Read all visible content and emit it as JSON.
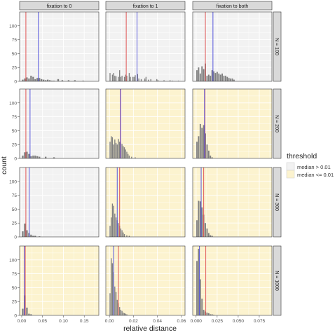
{
  "chart_data": {
    "type": "bar",
    "title": "",
    "xlabel": "relative distance",
    "ylabel": "count",
    "ylim": [
      0,
      125
    ],
    "yticks": [
      0,
      25,
      50,
      75,
      100
    ],
    "grid": true,
    "legend": {
      "title": "threshold",
      "placement": "right",
      "entries": [
        {
          "label": "median > 0.01",
          "color": "#f2f2f2"
        },
        {
          "label": "median <= 0.01",
          "color": "#fcf3cf"
        }
      ]
    },
    "line_colors": {
      "red_line": "#e05555",
      "blue_line": "#5555dd"
    },
    "bar_color": "#808080",
    "columns": [
      {
        "label": "fixation to 0",
        "xlim": [
          -0.005,
          0.185
        ],
        "xticks": [
          "0.00",
          "0.05",
          "0.10",
          "0.15"
        ],
        "xtick_values": [
          0,
          0.05,
          0.1,
          0.15
        ]
      },
      {
        "label": "fixation to 1",
        "xlim": [
          -0.003,
          0.063
        ],
        "xticks": [
          "0.00",
          "0.02",
          "0.04",
          "0.06"
        ],
        "xtick_values": [
          0,
          0.02,
          0.04,
          0.06
        ]
      },
      {
        "label": "fixation to both",
        "xlim": [
          -0.004,
          0.09
        ],
        "xticks": [
          "0.000",
          "0.025",
          "0.050",
          "0.075"
        ],
        "xtick_values": [
          0,
          0.025,
          0.05,
          0.075
        ]
      }
    ],
    "rows": [
      {
        "label": "N = 100"
      },
      {
        "label": "N = 200"
      },
      {
        "label": "N = 300"
      },
      {
        "label": "N = 1000"
      }
    ],
    "panels": [
      [
        {
          "fill": "median > 0.01",
          "red": 0.01,
          "blue": 0.04,
          "bins": [
            [
              0.0025,
              3
            ],
            [
              0.0075,
              5
            ],
            [
              0.0125,
              7
            ],
            [
              0.0175,
              5
            ],
            [
              0.0225,
              10
            ],
            [
              0.0275,
              8
            ],
            [
              0.0325,
              4
            ],
            [
              0.0375,
              6
            ],
            [
              0.0425,
              6
            ],
            [
              0.0475,
              4
            ],
            [
              0.0525,
              3
            ],
            [
              0.0575,
              2
            ],
            [
              0.0625,
              3
            ],
            [
              0.0675,
              2
            ],
            [
              0.0725,
              1
            ],
            [
              0.0775,
              1
            ],
            [
              0.0875,
              4
            ],
            [
              0.0975,
              2
            ],
            [
              0.1125,
              2
            ],
            [
              0.1275,
              2
            ],
            [
              0.1475,
              1
            ]
          ]
        },
        {
          "fill": "median > 0.01",
          "red": 0.01,
          "blue": 0.02,
          "bins": [
            [
              0.0025,
              5
            ],
            [
              0.0075,
              11
            ],
            [
              0.0125,
              12
            ],
            [
              0.0175,
              8
            ],
            [
              0.0225,
              4
            ],
            [
              0.0275,
              5
            ],
            [
              0.0325,
              5
            ],
            [
              0.0375,
              4
            ],
            [
              0.0425,
              3
            ],
            [
              0.0575,
              3
            ],
            [
              0.0775,
              2
            ]
          ]
        },
        {
          "fill": "median > 0.01",
          "red": 0.01,
          "blue": 0.018,
          "bins": [
            [
              0.0025,
              10
            ],
            [
              0.0075,
              24
            ],
            [
              0.0125,
              12
            ],
            [
              0.0175,
              7
            ],
            [
              0.0225,
              4
            ],
            [
              0.0275,
              2
            ],
            [
              0.0325,
              2
            ],
            [
              0.0425,
              1
            ]
          ]
        },
        {
          "fill": "median <= 0.01",
          "red": 0.0085,
          "blue": 0.006,
          "bins": [
            [
              0.0025,
              12
            ],
            [
              0.0075,
              36
            ],
            [
              0.0125,
              14
            ],
            [
              0.0175,
              3
            ],
            [
              0.0225,
              2
            ]
          ]
        }
      ],
      [
        {
          "fill": "median > 0.01",
          "red": 0.014,
          "blue": 0.023,
          "bins": [
            [
              0.0005,
              15
            ],
            [
              0.0025,
              12
            ],
            [
              0.0035,
              15
            ],
            [
              0.0045,
              10
            ],
            [
              0.0055,
              9
            ],
            [
              0.0075,
              8
            ],
            [
              0.0085,
              20
            ],
            [
              0.0095,
              8
            ],
            [
              0.0105,
              10
            ],
            [
              0.0125,
              8
            ],
            [
              0.0135,
              12
            ],
            [
              0.0145,
              10
            ],
            [
              0.0165,
              15
            ],
            [
              0.0175,
              8
            ],
            [
              0.0195,
              8
            ],
            [
              0.0205,
              8
            ],
            [
              0.0215,
              11
            ],
            [
              0.0235,
              13
            ],
            [
              0.0245,
              5
            ],
            [
              0.0265,
              4
            ],
            [
              0.0295,
              5
            ],
            [
              0.0305,
              8
            ],
            [
              0.0325,
              3
            ],
            [
              0.0345,
              4
            ],
            [
              0.0395,
              4
            ],
            [
              0.0405,
              2
            ],
            [
              0.0455,
              2
            ],
            [
              0.0505,
              2
            ],
            [
              0.0525,
              1
            ],
            [
              0.0575,
              1
            ]
          ]
        },
        {
          "fill": "median <= 0.01",
          "red": 0.0095,
          "blue": 0.0092,
          "bins": [
            [
              0.0005,
              30
            ],
            [
              0.0015,
              40
            ],
            [
              0.0025,
              38
            ],
            [
              0.0035,
              25
            ],
            [
              0.0045,
              34
            ],
            [
              0.0055,
              28
            ],
            [
              0.0065,
              25
            ],
            [
              0.0075,
              35
            ],
            [
              0.0085,
              30
            ],
            [
              0.0095,
              27
            ],
            [
              0.0105,
              26
            ],
            [
              0.0115,
              22
            ],
            [
              0.0125,
              20
            ],
            [
              0.0135,
              16
            ],
            [
              0.0145,
              12
            ],
            [
              0.0155,
              8
            ],
            [
              0.0165,
              5
            ],
            [
              0.0185,
              3
            ],
            [
              0.0215,
              2
            ]
          ]
        },
        {
          "fill": "median <= 0.01",
          "red": 0.0085,
          "blue": 0.0065,
          "bins": [
            [
              0.0005,
              20
            ],
            [
              0.0015,
              35
            ],
            [
              0.0025,
              60
            ],
            [
              0.0035,
              56
            ],
            [
              0.0045,
              42
            ],
            [
              0.0055,
              35
            ],
            [
              0.0065,
              30
            ],
            [
              0.0075,
              25
            ],
            [
              0.0085,
              20
            ],
            [
              0.0095,
              15
            ],
            [
              0.0105,
              12
            ],
            [
              0.0115,
              8
            ],
            [
              0.0125,
              5
            ],
            [
              0.0145,
              3
            ],
            [
              0.0165,
              2
            ]
          ]
        },
        {
          "fill": "median <= 0.01",
          "red": 0.0075,
          "blue": 0.0035,
          "bins": [
            [
              0.0005,
              40
            ],
            [
              0.0015,
              103
            ],
            [
              0.0025,
              94
            ],
            [
              0.0035,
              78
            ],
            [
              0.0045,
              52
            ],
            [
              0.0055,
              42
            ],
            [
              0.0065,
              28
            ],
            [
              0.0075,
              22
            ],
            [
              0.0085,
              15
            ],
            [
              0.0095,
              10
            ],
            [
              0.0105,
              8
            ],
            [
              0.0115,
              5
            ],
            [
              0.0125,
              4
            ],
            [
              0.0135,
              3
            ],
            [
              0.0145,
              2
            ]
          ]
        }
      ],
      [
        {
          "fill": "median > 0.01",
          "red": 0.011,
          "blue": 0.02,
          "bins": [
            [
              0.001,
              20
            ],
            [
              0.003,
              25
            ],
            [
              0.005,
              14
            ],
            [
              0.007,
              27
            ],
            [
              0.009,
              22
            ],
            [
              0.011,
              32
            ],
            [
              0.013,
              10
            ],
            [
              0.015,
              12
            ],
            [
              0.017,
              10
            ],
            [
              0.019,
              20
            ],
            [
              0.021,
              18
            ],
            [
              0.023,
              15
            ],
            [
              0.025,
              17
            ],
            [
              0.027,
              14
            ],
            [
              0.029,
              12
            ],
            [
              0.031,
              14
            ],
            [
              0.033,
              10
            ],
            [
              0.035,
              10
            ],
            [
              0.037,
              8
            ],
            [
              0.039,
              6
            ],
            [
              0.041,
              5
            ],
            [
              0.043,
              5
            ],
            [
              0.045,
              3
            ]
          ]
        },
        {
          "fill": "median <= 0.01",
          "red": 0.0105,
          "blue": 0.01,
          "bins": [
            [
              0.001,
              30
            ],
            [
              0.003,
              40
            ],
            [
              0.005,
              62
            ],
            [
              0.007,
              55
            ],
            [
              0.009,
              60
            ],
            [
              0.011,
              45
            ],
            [
              0.013,
              25
            ],
            [
              0.015,
              14
            ],
            [
              0.017,
              5
            ],
            [
              0.019,
              2
            ]
          ]
        },
        {
          "fill": "median <= 0.01",
          "red": 0.009,
          "blue": 0.006,
          "bins": [
            [
              0.001,
              30
            ],
            [
              0.003,
              65
            ],
            [
              0.005,
              64
            ],
            [
              0.007,
              53
            ],
            [
              0.009,
              40
            ],
            [
              0.011,
              25
            ],
            [
              0.013,
              15
            ],
            [
              0.015,
              7
            ],
            [
              0.017,
              3
            ],
            [
              0.019,
              2
            ]
          ]
        },
        {
          "fill": "median <= 0.01",
          "red": 0.0115,
          "blue": 0.004,
          "bins": [
            [
              0.001,
              98
            ],
            [
              0.003,
              120
            ],
            [
              0.005,
              65
            ],
            [
              0.007,
              30
            ],
            [
              0.009,
              10
            ],
            [
              0.011,
              7
            ],
            [
              0.013,
              5
            ],
            [
              0.015,
              4
            ],
            [
              0.017,
              2
            ],
            [
              0.019,
              2
            ],
            [
              0.021,
              1
            ]
          ]
        }
      ]
    ]
  }
}
